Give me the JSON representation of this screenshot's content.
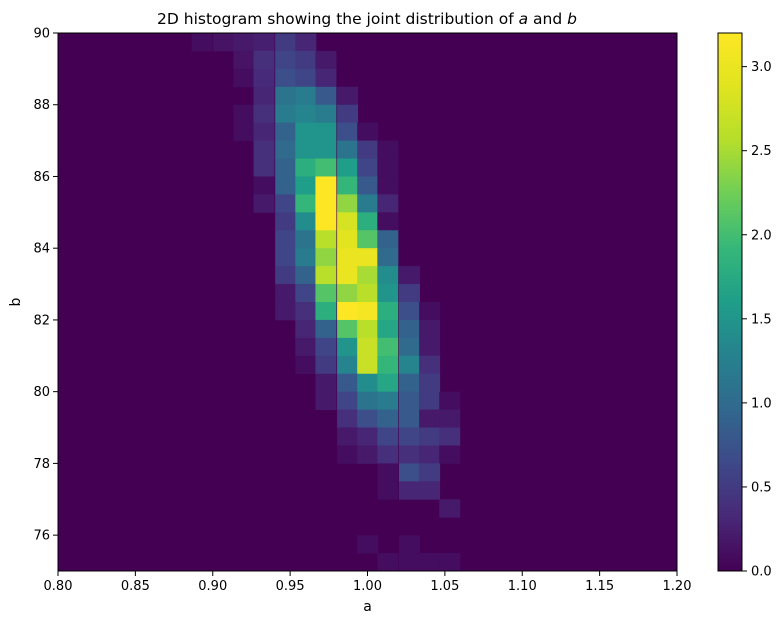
{
  "chart_data": {
    "type": "heatmap",
    "title_prefix": "2D histogram showing the joint distribution of ",
    "title_var_a": "a",
    "title_and": " and ",
    "title_var_b": "b",
    "xlabel": "a",
    "ylabel": "b",
    "xlim": [
      0.8,
      1.2
    ],
    "ylim": [
      75,
      90
    ],
    "xticks": [
      "0.80",
      "0.85",
      "0.90",
      "0.95",
      "1.00",
      "1.05",
      "1.10",
      "1.15",
      "1.20"
    ],
    "yticks": [
      "76",
      "78",
      "80",
      "82",
      "84",
      "86",
      "88",
      "90"
    ],
    "colorbar": {
      "range": [
        0,
        3.2
      ],
      "ticks": [
        "0.0",
        "0.5",
        "1.0",
        "1.5",
        "2.0",
        "2.5",
        "3.0"
      ],
      "colormap": "viridis"
    },
    "bins": {
      "x_edges": [
        0.8,
        1.2
      ],
      "x_bin_width": 0.0133,
      "y_edges": [
        75,
        90
      ],
      "y_bin_width": 0.5
    },
    "cells": [
      [
        0.893,
        89.75,
        0.1
      ],
      [
        0.907,
        89.75,
        0.15
      ],
      [
        0.92,
        89.75,
        0.2
      ],
      [
        0.933,
        89.75,
        0.25
      ],
      [
        0.947,
        89.75,
        0.5
      ],
      [
        0.96,
        89.75,
        0.3
      ],
      [
        0.92,
        89.25,
        0.15
      ],
      [
        0.933,
        89.25,
        0.4
      ],
      [
        0.947,
        89.25,
        0.6
      ],
      [
        0.96,
        89.25,
        0.5
      ],
      [
        0.973,
        89.25,
        0.2
      ],
      [
        0.92,
        88.75,
        0.1
      ],
      [
        0.933,
        88.75,
        0.35
      ],
      [
        0.947,
        88.75,
        0.7
      ],
      [
        0.96,
        88.75,
        0.6
      ],
      [
        0.973,
        88.75,
        0.3
      ],
      [
        0.933,
        88.25,
        0.3
      ],
      [
        0.947,
        88.25,
        1.1
      ],
      [
        0.96,
        88.25,
        1.2
      ],
      [
        0.973,
        88.25,
        0.8
      ],
      [
        0.987,
        88.25,
        0.2
      ],
      [
        0.92,
        87.75,
        0.1
      ],
      [
        0.933,
        87.75,
        0.4
      ],
      [
        0.947,
        87.75,
        1.2
      ],
      [
        0.96,
        87.75,
        1.3
      ],
      [
        0.973,
        87.75,
        1.2
      ],
      [
        0.987,
        87.75,
        0.5
      ],
      [
        0.92,
        87.25,
        0.1
      ],
      [
        0.933,
        87.25,
        0.3
      ],
      [
        0.947,
        87.25,
        0.9
      ],
      [
        0.96,
        87.25,
        1.5
      ],
      [
        0.973,
        87.25,
        1.5
      ],
      [
        0.987,
        87.25,
        0.7
      ],
      [
        1.0,
        87.25,
        0.1
      ],
      [
        0.933,
        86.75,
        0.4
      ],
      [
        0.947,
        86.75,
        1.0
      ],
      [
        0.96,
        86.75,
        1.5
      ],
      [
        0.973,
        86.75,
        1.5
      ],
      [
        0.987,
        86.75,
        1.1
      ],
      [
        1.0,
        86.75,
        0.5
      ],
      [
        1.013,
        86.75,
        0.1
      ],
      [
        0.933,
        86.25,
        0.4
      ],
      [
        0.947,
        86.25,
        0.9
      ],
      [
        0.96,
        86.25,
        1.8
      ],
      [
        0.973,
        86.25,
        2.0
      ],
      [
        0.987,
        86.25,
        1.6
      ],
      [
        1.0,
        86.25,
        0.6
      ],
      [
        1.013,
        86.25,
        0.1
      ],
      [
        0.933,
        85.75,
        0.1
      ],
      [
        0.947,
        85.75,
        0.9
      ],
      [
        0.96,
        85.75,
        1.6
      ],
      [
        0.973,
        85.75,
        3.2
      ],
      [
        0.987,
        85.75,
        1.9
      ],
      [
        1.0,
        85.75,
        0.8
      ],
      [
        1.013,
        85.75,
        0.1
      ],
      [
        0.933,
        85.25,
        0.2
      ],
      [
        0.947,
        85.25,
        0.6
      ],
      [
        0.96,
        85.25,
        1.9
      ],
      [
        0.973,
        85.25,
        3.2
      ],
      [
        0.987,
        85.25,
        2.4
      ],
      [
        1.0,
        85.25,
        1.2
      ],
      [
        1.013,
        85.25,
        0.3
      ],
      [
        0.947,
        84.75,
        0.5
      ],
      [
        0.96,
        84.75,
        1.4
      ],
      [
        0.973,
        84.75,
        3.2
      ],
      [
        0.987,
        84.75,
        2.8
      ],
      [
        1.0,
        84.75,
        1.8
      ],
      [
        1.013,
        84.75,
        0.1
      ],
      [
        0.947,
        84.25,
        0.6
      ],
      [
        0.96,
        84.25,
        1.1
      ],
      [
        0.973,
        84.25,
        2.6
      ],
      [
        0.987,
        84.25,
        2.9
      ],
      [
        1.0,
        84.25,
        2.1
      ],
      [
        1.013,
        84.25,
        0.9
      ],
      [
        0.947,
        83.75,
        0.6
      ],
      [
        0.96,
        83.75,
        1.2
      ],
      [
        0.973,
        83.75,
        2.4
      ],
      [
        0.987,
        83.75,
        3.0
      ],
      [
        1.0,
        83.75,
        3.0
      ],
      [
        1.013,
        83.75,
        1.0
      ],
      [
        0.947,
        83.25,
        0.5
      ],
      [
        0.96,
        83.25,
        0.9
      ],
      [
        0.973,
        83.25,
        2.6
      ],
      [
        0.987,
        83.25,
        3.0
      ],
      [
        1.0,
        83.25,
        2.5
      ],
      [
        1.013,
        83.25,
        1.4
      ],
      [
        1.027,
        83.25,
        0.2
      ],
      [
        0.947,
        82.75,
        0.2
      ],
      [
        0.96,
        82.75,
        0.6
      ],
      [
        0.973,
        82.75,
        2.1
      ],
      [
        0.987,
        82.75,
        2.4
      ],
      [
        1.0,
        82.75,
        2.6
      ],
      [
        1.013,
        82.75,
        1.5
      ],
      [
        1.027,
        82.75,
        0.5
      ],
      [
        0.947,
        82.25,
        0.2
      ],
      [
        0.96,
        82.25,
        0.4
      ],
      [
        0.973,
        82.25,
        1.8
      ],
      [
        0.987,
        82.25,
        3.2
      ],
      [
        1.0,
        82.25,
        3.1
      ],
      [
        1.013,
        82.25,
        1.8
      ],
      [
        1.027,
        82.25,
        0.7
      ],
      [
        1.04,
        82.25,
        0.1
      ],
      [
        0.96,
        81.75,
        0.3
      ],
      [
        0.973,
        81.75,
        0.9
      ],
      [
        0.987,
        81.75,
        2.1
      ],
      [
        1.0,
        81.75,
        2.6
      ],
      [
        1.013,
        81.75,
        1.7
      ],
      [
        1.027,
        81.75,
        0.9
      ],
      [
        1.04,
        81.75,
        0.2
      ],
      [
        0.96,
        81.25,
        0.2
      ],
      [
        0.973,
        81.25,
        0.6
      ],
      [
        0.987,
        81.25,
        1.5
      ],
      [
        1.0,
        81.25,
        2.7
      ],
      [
        1.013,
        81.25,
        2.0
      ],
      [
        1.027,
        81.25,
        1.0
      ],
      [
        1.04,
        81.25,
        0.2
      ],
      [
        0.96,
        80.75,
        0.1
      ],
      [
        0.973,
        80.75,
        0.5
      ],
      [
        0.987,
        80.75,
        1.3
      ],
      [
        1.0,
        80.75,
        2.7
      ],
      [
        1.013,
        80.75,
        1.9
      ],
      [
        1.027,
        80.75,
        1.3
      ],
      [
        1.04,
        80.75,
        0.4
      ],
      [
        0.973,
        80.25,
        0.2
      ],
      [
        0.987,
        80.25,
        0.8
      ],
      [
        1.0,
        80.25,
        1.4
      ],
      [
        1.013,
        80.25,
        1.7
      ],
      [
        1.027,
        80.25,
        0.9
      ],
      [
        1.04,
        80.25,
        0.5
      ],
      [
        0.973,
        79.75,
        0.2
      ],
      [
        0.987,
        79.75,
        0.6
      ],
      [
        1.0,
        79.75,
        1.1
      ],
      [
        1.013,
        79.75,
        1.2
      ],
      [
        1.027,
        79.75,
        0.8
      ],
      [
        1.04,
        79.75,
        0.5
      ],
      [
        1.053,
        79.75,
        0.1
      ],
      [
        0.987,
        79.25,
        0.4
      ],
      [
        1.0,
        79.25,
        0.7
      ],
      [
        1.013,
        79.25,
        0.9
      ],
      [
        1.027,
        79.25,
        0.8
      ],
      [
        1.04,
        79.25,
        0.2
      ],
      [
        1.053,
        79.25,
        0.2
      ],
      [
        0.987,
        78.75,
        0.2
      ],
      [
        1.0,
        78.75,
        0.3
      ],
      [
        1.013,
        78.75,
        0.6
      ],
      [
        1.027,
        78.75,
        0.6
      ],
      [
        1.04,
        78.75,
        0.5
      ],
      [
        1.053,
        78.75,
        0.4
      ],
      [
        0.987,
        78.25,
        0.1
      ],
      [
        1.0,
        78.25,
        0.2
      ],
      [
        1.013,
        78.25,
        0.4
      ],
      [
        1.027,
        78.25,
        0.4
      ],
      [
        1.04,
        78.25,
        0.3
      ],
      [
        1.053,
        78.25,
        0.1
      ],
      [
        1.013,
        77.75,
        0.1
      ],
      [
        1.027,
        77.75,
        0.7
      ],
      [
        1.04,
        77.75,
        0.5
      ],
      [
        1.013,
        77.25,
        0.1
      ],
      [
        1.027,
        77.25,
        0.3
      ],
      [
        1.04,
        77.25,
        0.3
      ],
      [
        1.053,
        76.75,
        0.2
      ],
      [
        1.0,
        75.75,
        0.1
      ],
      [
        1.027,
        75.75,
        0.1
      ],
      [
        1.013,
        75.25,
        0.1
      ],
      [
        1.027,
        75.25,
        0.1
      ],
      [
        1.04,
        75.25,
        0.1
      ],
      [
        1.053,
        75.25,
        0.1
      ]
    ]
  }
}
